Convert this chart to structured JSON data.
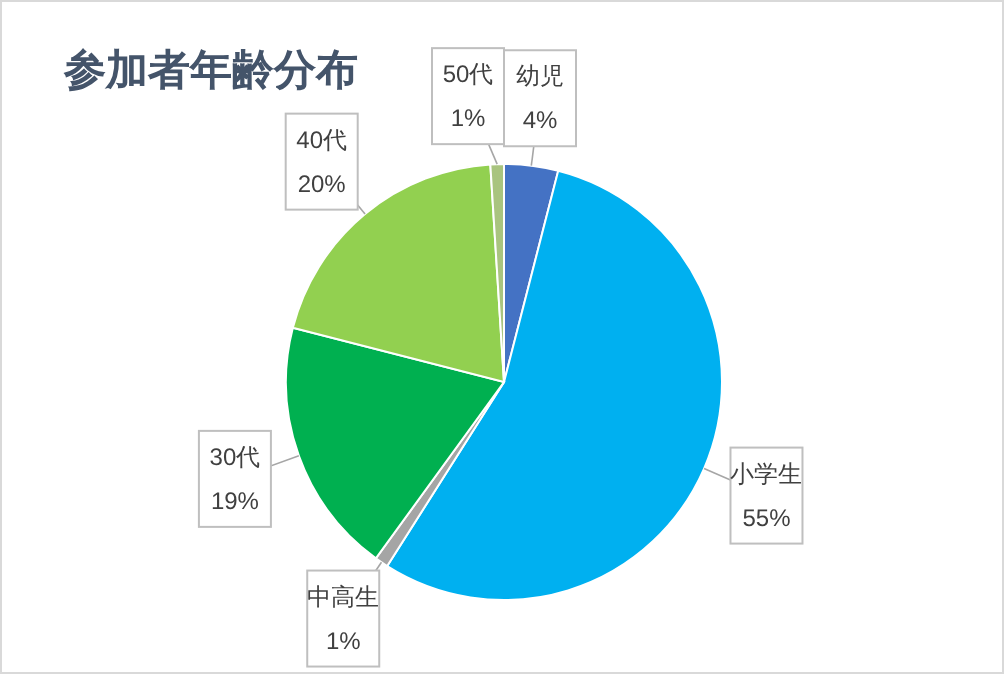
{
  "chart_data": {
    "type": "pie",
    "title": "参加者年齢分布",
    "categories": [
      "幼児",
      "小学生",
      "中高生",
      "30代",
      "40代",
      "50代"
    ],
    "values": [
      4,
      55,
      1,
      19,
      20,
      1
    ],
    "colors": [
      "#4472c4",
      "#00b0f0",
      "#a5a5a5",
      "#00b050",
      "#92d050",
      "#a9c47f"
    ],
    "value_labels": [
      "4%",
      "55%",
      "1%",
      "19%",
      "20%",
      "1%"
    ]
  }
}
